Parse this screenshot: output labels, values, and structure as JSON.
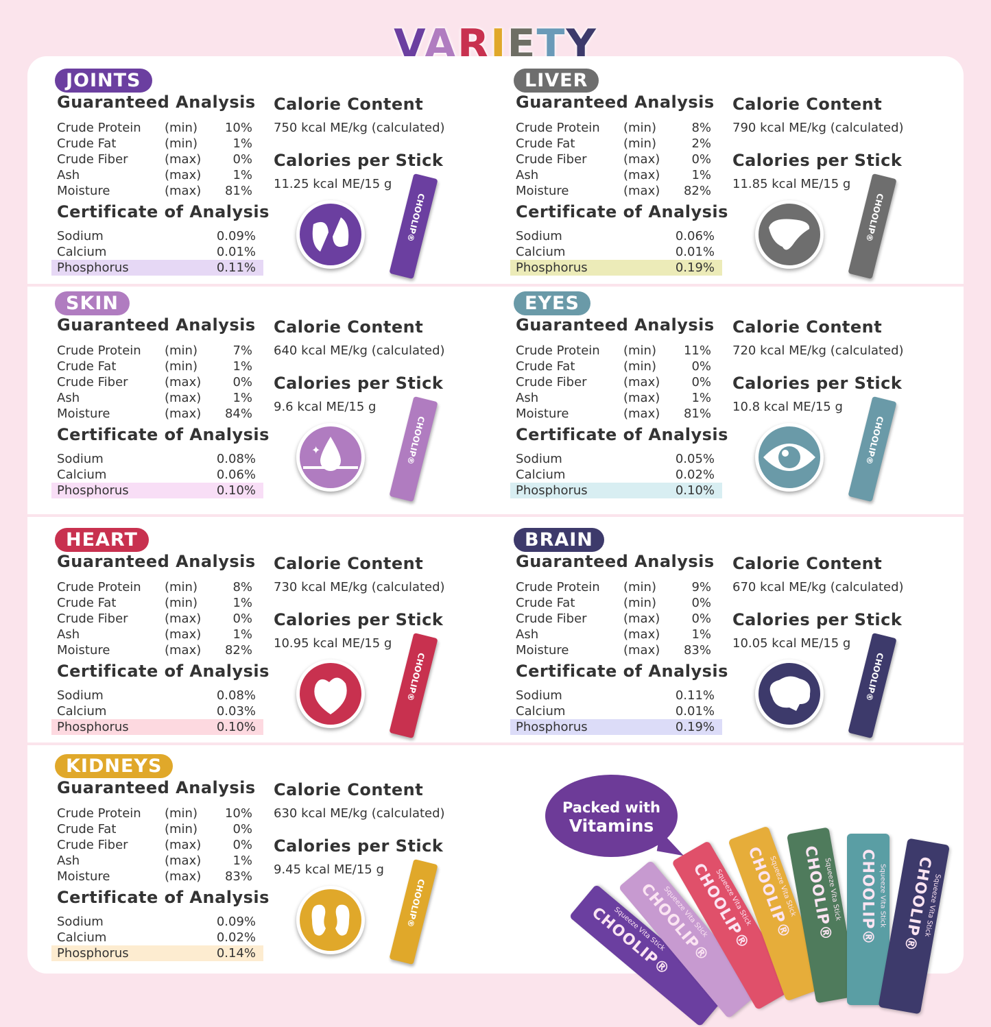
{
  "title": {
    "letters": [
      "V",
      "A",
      "R",
      "I",
      "E",
      "T",
      "Y"
    ],
    "colors": [
      "#6b3fa0",
      "#b07cc0",
      "#c8314f",
      "#e0a82a",
      "#6e6e64",
      "#6a9ab8",
      "#3d3a6b"
    ]
  },
  "labels": {
    "guaranteed": "Guaranteed Analysis",
    "certificate": "Certificate of Analysis",
    "calorie_content": "Calorie Content",
    "calories_per_stick": "Calories per Stick"
  },
  "stick": {
    "brand": "CHOOLIP®",
    "tagline": "Squeeze Vita Stick"
  },
  "panels": [
    {
      "name": "JOINTS",
      "color": "#6b3fa0",
      "highlight": "#e6d8f5",
      "icon": "joint-icon",
      "calorie_content": "750 kcal ME/kg (calculated)",
      "per_stick": "11.25 kcal ME/15 g",
      "analysis": [
        [
          "Crude Protein",
          "(min)",
          "10%"
        ],
        [
          "Crude Fat",
          "(min)",
          "1%"
        ],
        [
          "Crude Fiber",
          "(max)",
          "0%"
        ],
        [
          "Ash",
          "(max)",
          "1%"
        ],
        [
          "Moisture",
          "(max)",
          "81%"
        ]
      ],
      "certificate": [
        [
          "Sodium",
          "0.09%"
        ],
        [
          "Calcium",
          "0.01%"
        ],
        [
          "Phosphorus",
          "0.11%"
        ]
      ]
    },
    {
      "name": "LIVER",
      "color": "#6e6e6e",
      "highlight": "#ecebb8",
      "icon": "liver-icon",
      "calorie_content": "790 kcal ME/kg (calculated)",
      "per_stick": "11.85 kcal ME/15 g",
      "analysis": [
        [
          "Crude Protein",
          "(min)",
          "8%"
        ],
        [
          "Crude Fat",
          "(min)",
          "2%"
        ],
        [
          "Crude Fiber",
          "(max)",
          "0%"
        ],
        [
          "Ash",
          "(max)",
          "1%"
        ],
        [
          "Moisture",
          "(max)",
          "82%"
        ]
      ],
      "certificate": [
        [
          "Sodium",
          "0.06%"
        ],
        [
          "Calcium",
          "0.01%"
        ],
        [
          "Phosphorus",
          "0.19%"
        ]
      ]
    },
    {
      "name": "SKIN",
      "color": "#b07cc0",
      "highlight": "#f8def6",
      "icon": "skin-drop-icon",
      "calorie_content": "640 kcal ME/kg (calculated)",
      "per_stick": "9.6 kcal ME/15 g",
      "analysis": [
        [
          "Crude Protein",
          "(min)",
          "7%"
        ],
        [
          "Crude Fat",
          "(min)",
          "1%"
        ],
        [
          "Crude Fiber",
          "(max)",
          "0%"
        ],
        [
          "Ash",
          "(max)",
          "1%"
        ],
        [
          "Moisture",
          "(max)",
          "84%"
        ]
      ],
      "certificate": [
        [
          "Sodium",
          "0.08%"
        ],
        [
          "Calcium",
          "0.06%"
        ],
        [
          "Phosphorus",
          "0.10%"
        ]
      ]
    },
    {
      "name": "EYES",
      "color": "#6a9aa8",
      "highlight": "#d8eef2",
      "icon": "eye-icon",
      "calorie_content": "720 kcal ME/kg (calculated)",
      "per_stick": "10.8 kcal ME/15 g",
      "analysis": [
        [
          "Crude Protein",
          "(min)",
          "11%"
        ],
        [
          "Crude Fat",
          "(min)",
          "0%"
        ],
        [
          "Crude Fiber",
          "(max)",
          "0%"
        ],
        [
          "Ash",
          "(max)",
          "1%"
        ],
        [
          "Moisture",
          "(max)",
          "81%"
        ]
      ],
      "certificate": [
        [
          "Sodium",
          "0.05%"
        ],
        [
          "Calcium",
          "0.02%"
        ],
        [
          "Phosphorus",
          "0.10%"
        ]
      ]
    },
    {
      "name": "HEART",
      "color": "#c8314f",
      "highlight": "#fdd9e0",
      "icon": "heart-icon",
      "calorie_content": "730 kcal ME/kg (calculated)",
      "per_stick": "10.95 kcal ME/15 g",
      "analysis": [
        [
          "Crude Protein",
          "(min)",
          "8%"
        ],
        [
          "Crude Fat",
          "(min)",
          "1%"
        ],
        [
          "Crude Fiber",
          "(max)",
          "0%"
        ],
        [
          "Ash",
          "(max)",
          "1%"
        ],
        [
          "Moisture",
          "(max)",
          "82%"
        ]
      ],
      "certificate": [
        [
          "Sodium",
          "0.08%"
        ],
        [
          "Calcium",
          "0.03%"
        ],
        [
          "Phosphorus",
          "0.10%"
        ]
      ]
    },
    {
      "name": "BRAIN",
      "color": "#3d3a6b",
      "highlight": "#dcdcf8",
      "icon": "brain-icon",
      "calorie_content": "670 kcal ME/kg (calculated)",
      "per_stick": "10.05 kcal ME/15 g",
      "analysis": [
        [
          "Crude Protein",
          "(min)",
          "9%"
        ],
        [
          "Crude Fat",
          "(min)",
          "0%"
        ],
        [
          "Crude Fiber",
          "(max)",
          "0%"
        ],
        [
          "Ash",
          "(max)",
          "1%"
        ],
        [
          "Moisture",
          "(max)",
          "83%"
        ]
      ],
      "certificate": [
        [
          "Sodium",
          "0.11%"
        ],
        [
          "Calcium",
          "0.01%"
        ],
        [
          "Phosphorus",
          "0.19%"
        ]
      ]
    },
    {
      "name": "KIDNEYS",
      "color": "#e0a82a",
      "highlight": "#fdecd0",
      "icon": "kidney-icon",
      "calorie_content": "630 kcal ME/kg (calculated)",
      "per_stick": "9.45 kcal ME/15 g",
      "analysis": [
        [
          "Crude Protein",
          "(min)",
          "10%"
        ],
        [
          "Crude Fat",
          "(min)",
          "0%"
        ],
        [
          "Crude Fiber",
          "(max)",
          "0%"
        ],
        [
          "Ash",
          "(max)",
          "1%"
        ],
        [
          "Moisture",
          "(max)",
          "83%"
        ]
      ],
      "certificate": [
        [
          "Sodium",
          "0.09%"
        ],
        [
          "Calcium",
          "0.02%"
        ],
        [
          "Phosphorus",
          "0.14%"
        ]
      ]
    }
  ],
  "bubble": {
    "line1": "Packed with",
    "line2": "Vitamins",
    "color": "#6d3b98"
  },
  "fan_colors": [
    "#6b3fa0",
    "#c79ad0",
    "#e0506a",
    "#e6ad3a",
    "#4f7b5c",
    "#5a9ea4",
    "#3d3a6b"
  ]
}
